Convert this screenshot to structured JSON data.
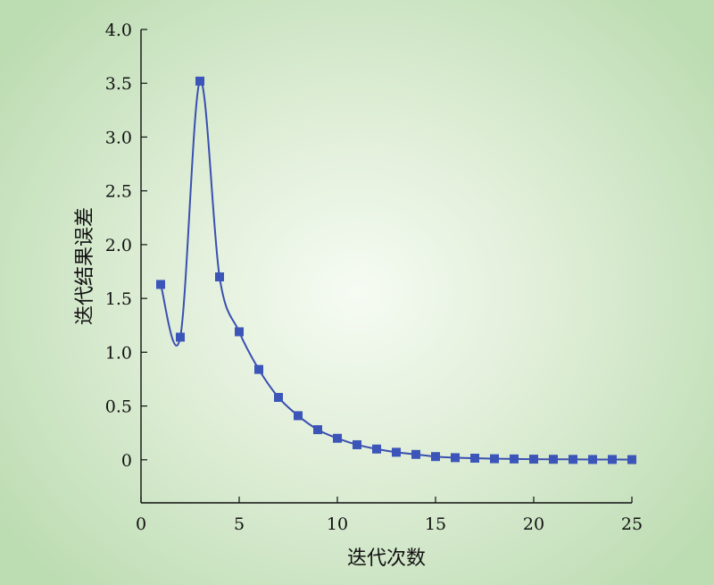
{
  "chart_data": {
    "type": "line",
    "title": "",
    "xlabel": "迭代次数",
    "ylabel": "迭代结果误差",
    "xlim": [
      0,
      25
    ],
    "ylim": [
      -0.4,
      4.0
    ],
    "x_ticks": [
      "0",
      "5",
      "10",
      "15",
      "20",
      "25"
    ],
    "y_ticks": [
      "0",
      "0.5",
      "1.0",
      "1.5",
      "2.0",
      "2.5",
      "3.0",
      "3.5",
      "4.0"
    ],
    "grid": false,
    "legend": "none",
    "line_color": "#3a4fb0",
    "marker_color": "#3b55b8",
    "marker": "square",
    "series": [
      {
        "x": [
          1,
          2,
          3,
          4,
          5,
          6,
          7,
          8,
          9,
          10,
          11,
          12,
          13,
          14,
          15,
          16,
          17,
          18,
          19,
          20,
          21,
          22,
          23,
          24,
          25
        ],
        "values": [
          1.63,
          1.14,
          3.52,
          1.7,
          1.19,
          0.84,
          0.58,
          0.41,
          0.28,
          0.2,
          0.14,
          0.1,
          0.07,
          0.05,
          0.03,
          0.02,
          0.015,
          0.01,
          0.008,
          0.006,
          0.005,
          0.004,
          0.003,
          0.003,
          0.002
        ]
      }
    ]
  }
}
